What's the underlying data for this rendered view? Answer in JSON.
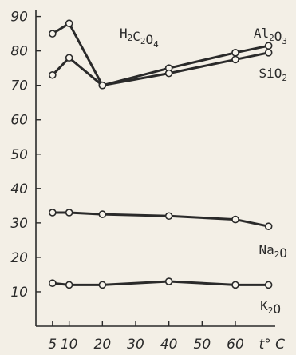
{
  "chart_data": {
    "type": "line",
    "title_parts": [
      "H",
      "2",
      "C",
      "2",
      "O",
      "4"
    ],
    "x_tick_labels": [
      "5",
      "10",
      "20",
      "30",
      "40",
      "50",
      "60",
      "t° C"
    ],
    "x_ticks": [
      5,
      10,
      20,
      30,
      40,
      50,
      60
    ],
    "y_tick_labels": [
      "10",
      "20",
      "30",
      "40",
      "50",
      "60",
      "70",
      "80",
      "90"
    ],
    "y_ticks": [
      10,
      20,
      30,
      40,
      50,
      60,
      70,
      80,
      90
    ],
    "xlim": [
      0,
      72
    ],
    "ylim": [
      0,
      92
    ],
    "series": [
      {
        "name_parts": [
          "Al",
          "2",
          "O",
          "3"
        ],
        "x": [
          5,
          10,
          20,
          40,
          60,
          70
        ],
        "values": [
          85,
          88,
          70,
          75,
          79.5,
          81.5
        ]
      },
      {
        "name_parts": [
          "SiO",
          "2"
        ],
        "x": [
          5,
          10,
          20,
          40,
          60,
          70
        ],
        "values": [
          73,
          78,
          70,
          73.5,
          77.5,
          79.5
        ]
      },
      {
        "name_parts": [
          "Na",
          "2",
          "O"
        ],
        "x": [
          5,
          10,
          20,
          40,
          60,
          70
        ],
        "values": [
          33,
          33,
          32.5,
          32,
          31,
          29
        ]
      },
      {
        "name_parts": [
          "K",
          "2",
          "O"
        ],
        "x": [
          5,
          10,
          20,
          40,
          60,
          70
        ],
        "values": [
          12.5,
          12,
          12,
          13,
          12,
          12
        ]
      }
    ]
  }
}
